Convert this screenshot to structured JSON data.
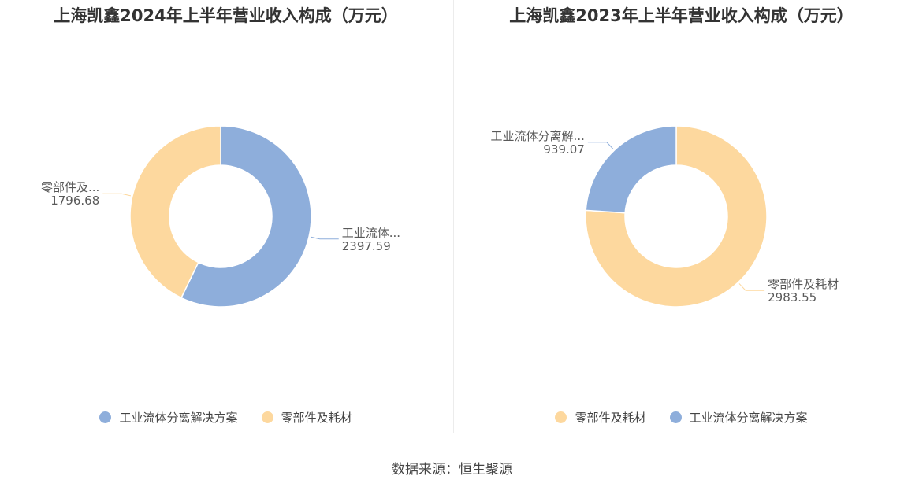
{
  "colors": {
    "industrial": "#8eaedb",
    "parts": "#fdd89e",
    "leader": "#aaaaaa"
  },
  "chart_data": [
    {
      "type": "pie",
      "variant": "donut",
      "title": "上海凯鑫2024年上半年营业收入构成（万元）",
      "series": [
        {
          "name": "工业流体分离解决方案",
          "short_label": "工业流体...",
          "value": 2397.59,
          "color": "#8eaedb"
        },
        {
          "name": "零部件及耗材",
          "short_label": "零部件及...",
          "value": 1796.68,
          "color": "#fdd89e"
        }
      ],
      "legend": [
        "工业流体分离解决方案",
        "零部件及耗材"
      ],
      "legend_position": "bottom"
    },
    {
      "type": "pie",
      "variant": "donut",
      "title": "上海凯鑫2023年上半年营业收入构成（万元）",
      "series": [
        {
          "name": "零部件及耗材",
          "short_label": "零部件及耗材",
          "value": 2983.55,
          "color": "#fdd89e"
        },
        {
          "name": "工业流体分离解决方案",
          "short_label": "工业流体分离解...",
          "value": 939.07,
          "color": "#8eaedb"
        }
      ],
      "legend": [
        "零部件及耗材",
        "工业流体分离解决方案"
      ],
      "legend_position": "bottom"
    }
  ],
  "footer": {
    "source": "数据来源：恒生聚源"
  }
}
